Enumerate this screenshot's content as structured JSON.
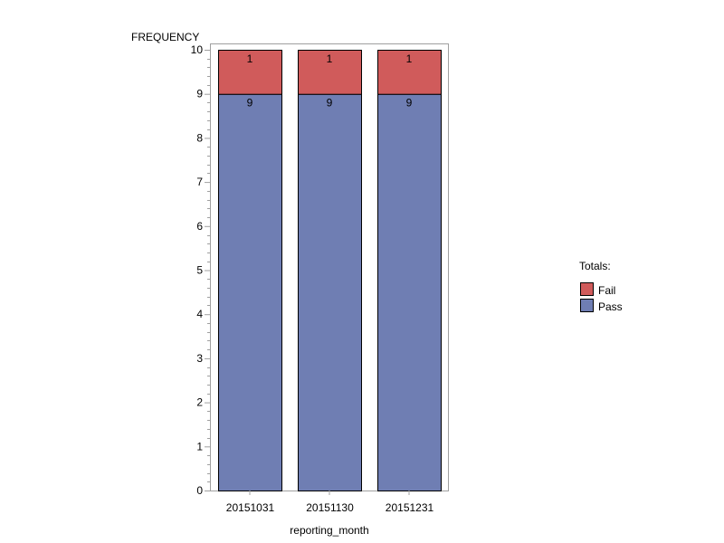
{
  "chart_data": {
    "type": "bar",
    "stacked": true,
    "title": "",
    "ylabel": "FREQUENCY",
    "xlabel": "reporting_month",
    "ylim": [
      0,
      10
    ],
    "yticks": [
      0,
      1,
      2,
      3,
      4,
      5,
      6,
      7,
      8,
      9,
      10
    ],
    "categories": [
      "20151031",
      "20151130",
      "20151231"
    ],
    "series": [
      {
        "name": "Pass",
        "values": [
          9,
          9,
          9
        ],
        "color": "#6F7EB3"
      },
      {
        "name": "Fail",
        "values": [
          1,
          1,
          1
        ],
        "color": "#D05B5B"
      }
    ],
    "legend": {
      "title": "Totals:",
      "placement": "right",
      "order": [
        "Fail",
        "Pass"
      ]
    },
    "grid": false,
    "data_labels": true
  }
}
